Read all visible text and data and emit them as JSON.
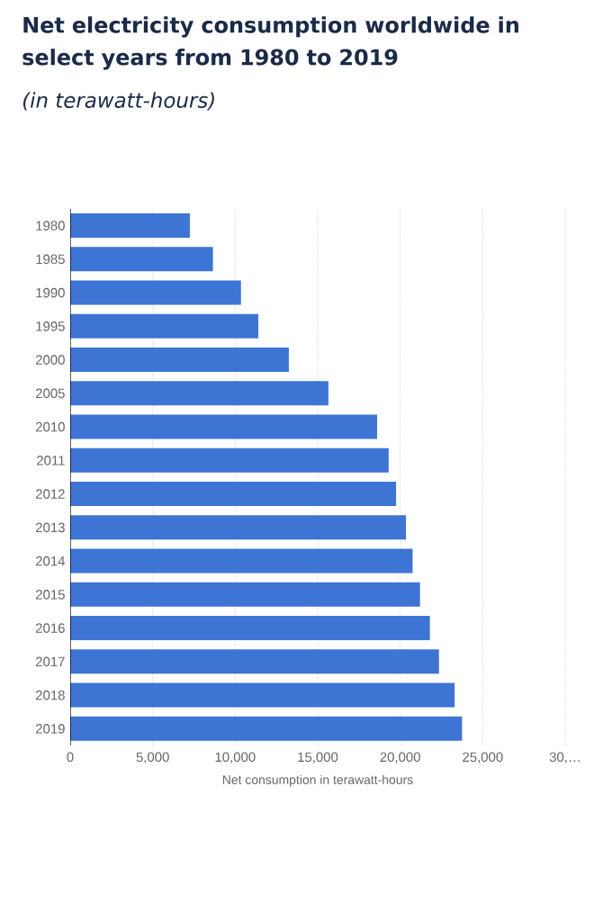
{
  "chart_data": {
    "type": "bar",
    "orientation": "horizontal",
    "title": "Net electricity consumption worldwide in select years from 1980 to 2019",
    "subtitle": "(in terawatt-hours)",
    "xlabel": "Net consumption in terawatt-hours",
    "categories": [
      "1980",
      "1985",
      "1990",
      "1995",
      "2000",
      "2005",
      "2010",
      "2011",
      "2012",
      "2013",
      "2014",
      "2015",
      "2016",
      "2017",
      "2018",
      "2019"
    ],
    "values": [
      7250,
      8650,
      10350,
      11400,
      13250,
      15650,
      18600,
      19300,
      19750,
      20350,
      20750,
      21200,
      21800,
      22350,
      23300,
      23750
    ],
    "color": "#3e74d4",
    "xlim": [
      0,
      30000
    ],
    "xticks": [
      0,
      {
        "value": 5000,
        "label": "5,000"
      },
      {
        "value": 10000,
        "label": "10,000"
      },
      {
        "value": 15000,
        "label": "15,000"
      },
      {
        "value": 20000,
        "label": "20,000"
      },
      {
        "value": 25000,
        "label": "25,000"
      },
      {
        "value": 30000,
        "label": "30,…"
      }
    ],
    "grid": "x"
  }
}
